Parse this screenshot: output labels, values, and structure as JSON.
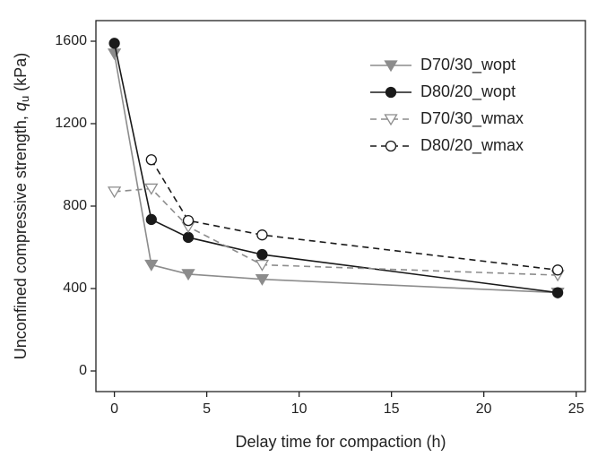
{
  "chart_data": {
    "type": "line",
    "xlabel": "Delay time for compaction (h)",
    "ylabel": {
      "text": "Unconfined compressive strength, ",
      "symbol": "q",
      "subscript": "u",
      "unit": " (kPa)"
    },
    "x": [
      0,
      2,
      4,
      8,
      24
    ],
    "series": [
      {
        "name": "D70/30_wopt",
        "color": "#8c8c8c",
        "linestyle": "solid",
        "marker": "triangle-down",
        "filled": true,
        "values": [
          1540,
          515,
          470,
          445,
          380
        ]
      },
      {
        "name": "D80/20_wopt",
        "color": "#1a1a1a",
        "linestyle": "solid",
        "marker": "circle",
        "filled": true,
        "values": [
          1590,
          735,
          648,
          565,
          380
        ]
      },
      {
        "name": "D70/30_wmax",
        "color": "#8c8c8c",
        "linestyle": "dashed",
        "marker": "triangle-down",
        "filled": false,
        "values": [
          870,
          885,
          700,
          515,
          465
        ]
      },
      {
        "name": "D80/20_wmax",
        "color": "#1a1a1a",
        "linestyle": "dashed",
        "marker": "circle",
        "filled": false,
        "values": [
          null,
          1025,
          730,
          660,
          490
        ]
      }
    ],
    "xlim": [
      -1,
      25.5
    ],
    "ylim": [
      -100,
      1700
    ],
    "xticks": [
      0,
      5,
      10,
      15,
      20,
      25
    ],
    "yticks": [
      0,
      400,
      800,
      1200,
      1600
    ],
    "legend": "upper right"
  }
}
